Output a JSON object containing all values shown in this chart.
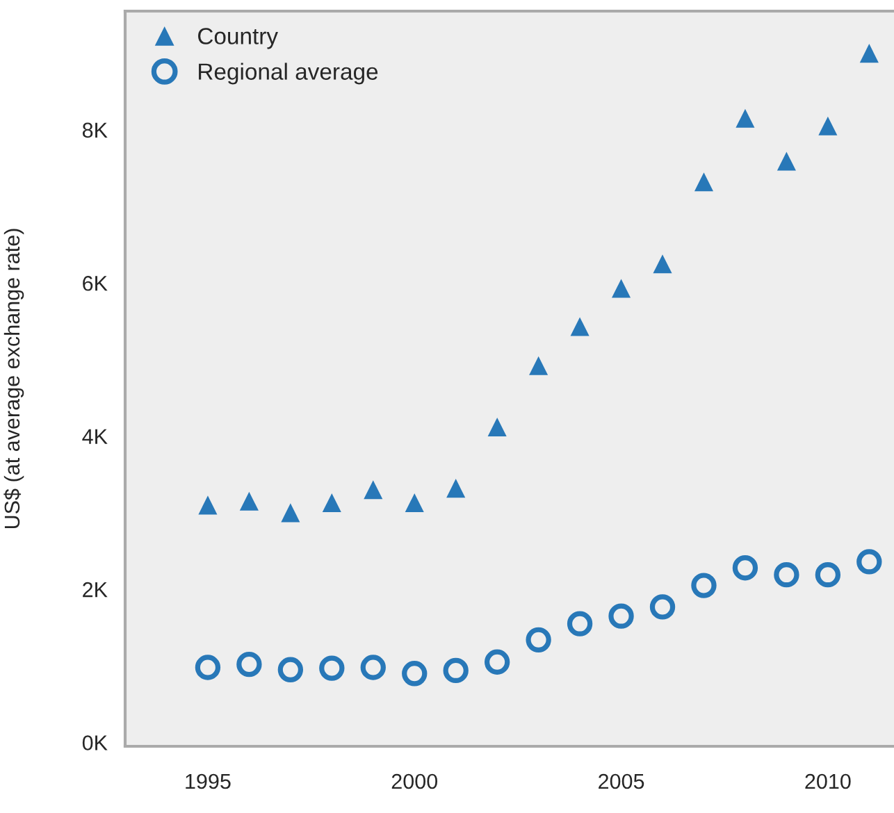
{
  "chart_data": {
    "type": "scatter",
    "ylabel": "US$ (at average exchange rate)",
    "x": [
      1995,
      1996,
      1997,
      1998,
      1999,
      2000,
      2001,
      2002,
      2003,
      2004,
      2005,
      2006,
      2007,
      2008,
      2009,
      2010,
      2011
    ],
    "series": [
      {
        "name": "Country",
        "color": "#2878b8",
        "marker": "triangle",
        "values": [
          3100,
          3150,
          3000,
          3130,
          3300,
          3130,
          3320,
          4120,
          4920,
          5430,
          5930,
          6250,
          7320,
          8150,
          7590,
          8050,
          9000
        ]
      },
      {
        "name": "Regional average",
        "color": "#2878b8",
        "marker": "circle",
        "values": [
          980,
          1020,
          950,
          970,
          980,
          900,
          940,
          1050,
          1340,
          1550,
          1650,
          1770,
          2050,
          2280,
          2190,
          2190,
          2360
        ]
      }
    ],
    "xlim": [
      1993,
      2011.6
    ],
    "xticks": [
      1995,
      2000,
      2005,
      2010
    ],
    "ylim": [
      -50,
      9550
    ],
    "yticks": [
      {
        "value": 0,
        "label": "0K"
      },
      {
        "value": 2000,
        "label": "2K"
      },
      {
        "value": 4000,
        "label": "4K"
      },
      {
        "value": 6000,
        "label": "6K"
      },
      {
        "value": 8000,
        "label": "8K"
      }
    ],
    "grid": false,
    "legend": "top left"
  }
}
